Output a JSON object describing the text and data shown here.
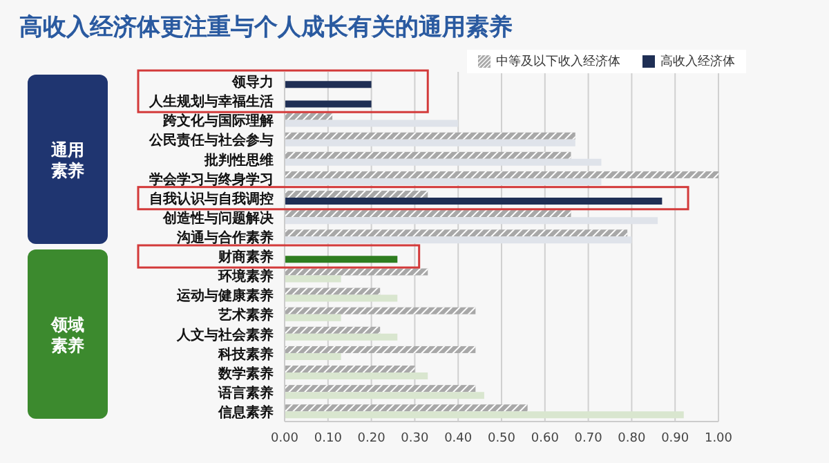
{
  "chart_data": {
    "type": "bar",
    "orientation": "horizontal",
    "title": "高收入经济体更注重与个人成长有关的通用素养",
    "categories": [
      "领导力",
      "人生规划与幸福生活",
      "跨文化与国际理解",
      "公民责任与社会参与",
      "批判性思维",
      "学会学习与终身学习",
      "自我认识与自我调控",
      "创造性与问题解决",
      "沟通与合作素养",
      "财商素养",
      "环境素养",
      "运动与健康素养",
      "艺术素养",
      "人文与社会素养",
      "科技素养",
      "数学素养",
      "语言素养",
      "信息素养"
    ],
    "series": [
      {
        "name": "中等及以下收入经济体",
        "color": "#a8a8a8",
        "values": [
          0,
          0,
          0.11,
          0.67,
          0.66,
          1.0,
          0.33,
          0.66,
          0.79,
          0,
          0.33,
          0.22,
          0.44,
          0.22,
          0.44,
          0.3,
          0.44,
          0.56
        ]
      },
      {
        "name": "高收入经济体",
        "color": "#1f2f55",
        "colors": [
          "#1f2f55",
          "#1f2f55",
          "#dfe3ea",
          "#dfe3ea",
          "#dfe3ea",
          "#dfe3ea",
          "#1f2f55",
          "#dfe3ea",
          "#dfe3ea",
          "#2e7d1f",
          "#d9e6cf",
          "#d9e6cf",
          "#d9e6cf",
          "#d9e6cf",
          "#d9e6cf",
          "#d9e6cf",
          "#d9e6cf",
          "#d9e6cf"
        ],
        "values": [
          0.2,
          0.2,
          0.4,
          0.67,
          0.73,
          0.73,
          0.87,
          0.86,
          0.8,
          0.26,
          0.13,
          0.26,
          0.13,
          0.26,
          0.13,
          0.33,
          0.46,
          0.92
        ]
      }
    ],
    "xlim": [
      0,
      1.0
    ],
    "xticks": [
      {
        "value": 0,
        "label": "0.00"
      },
      {
        "value": 0.1,
        "label": "0.10"
      },
      {
        "value": 0.2,
        "label": "0.20"
      },
      {
        "value": 0.3,
        "label": "0.30"
      },
      {
        "value": 0.4,
        "label": "0.40"
      },
      {
        "value": 0.5,
        "label": "0.50"
      },
      {
        "value": 0.6,
        "label": "0.60"
      },
      {
        "value": 0.7,
        "label": "0.70"
      },
      {
        "value": 0.8,
        "label": "0.80"
      },
      {
        "value": 0.9,
        "label": "0.90"
      },
      {
        "value": 1.0,
        "label": "1.00"
      }
    ],
    "grid": "x",
    "legend": "top right",
    "annotations": [
      "通用素养",
      "领域素养"
    ]
  }
}
